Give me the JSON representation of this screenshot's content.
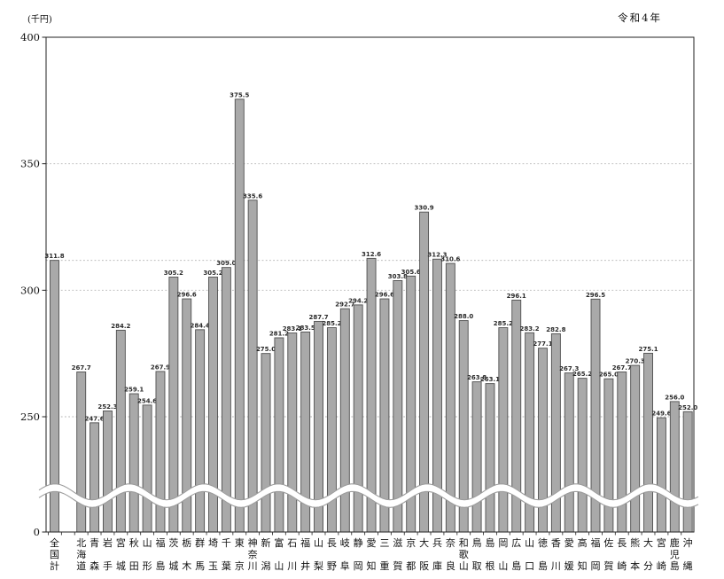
{
  "meta": {
    "unit_label": "(千円)",
    "era_label": "令和4年"
  },
  "chart_data": {
    "type": "bar",
    "title": "",
    "ylabel": "(千円)",
    "xlabel": "",
    "y_ticks": [
      "400",
      "350",
      "300",
      "250",
      "0"
    ],
    "ylim": [
      0,
      400
    ],
    "axis_break_between": [
      0,
      250
    ],
    "grid": "dotted horizontal gridlines at 250, 300, 350",
    "reference_line": 311.8,
    "legend": null,
    "bar_color": "#a9a9a9",
    "bar_border_color": "#4f4f4f",
    "categories": [
      "全国計",
      "北海道",
      "青森",
      "岩手",
      "宮城",
      "秋田",
      "山形",
      "福島",
      "茨城",
      "栃木",
      "群馬",
      "埼玉",
      "千葉",
      "東京",
      "神奈川",
      "新潟",
      "富山",
      "石川",
      "福井",
      "山梨",
      "長野",
      "岐阜",
      "静岡",
      "愛知",
      "三重",
      "滋賀",
      "京都",
      "大阪",
      "兵庫",
      "奈良",
      "和歌山",
      "鳥取",
      "島根",
      "岡山",
      "広島",
      "山口",
      "徳島",
      "香川",
      "愛媛",
      "高知",
      "福岡",
      "佐賀",
      "長崎",
      "熊本",
      "大分",
      "宮崎",
      "鹿児島",
      "沖縄"
    ],
    "values": [
      311.8,
      267.7,
      247.6,
      252.3,
      284.2,
      259.1,
      254.6,
      267.9,
      305.2,
      296.6,
      284.4,
      305.2,
      309.0,
      375.5,
      335.6,
      275.0,
      281.2,
      283.1,
      283.5,
      287.7,
      285.2,
      292.7,
      294.2,
      312.6,
      296.6,
      303.8,
      305.6,
      330.9,
      312.3,
      310.6,
      288.0,
      263.8,
      263.1,
      285.2,
      296.1,
      283.2,
      277.1,
      282.8,
      267.3,
      265.2,
      296.5,
      265.0,
      267.7,
      270.3,
      275.1,
      249.6,
      256.0,
      252.0
    ]
  }
}
